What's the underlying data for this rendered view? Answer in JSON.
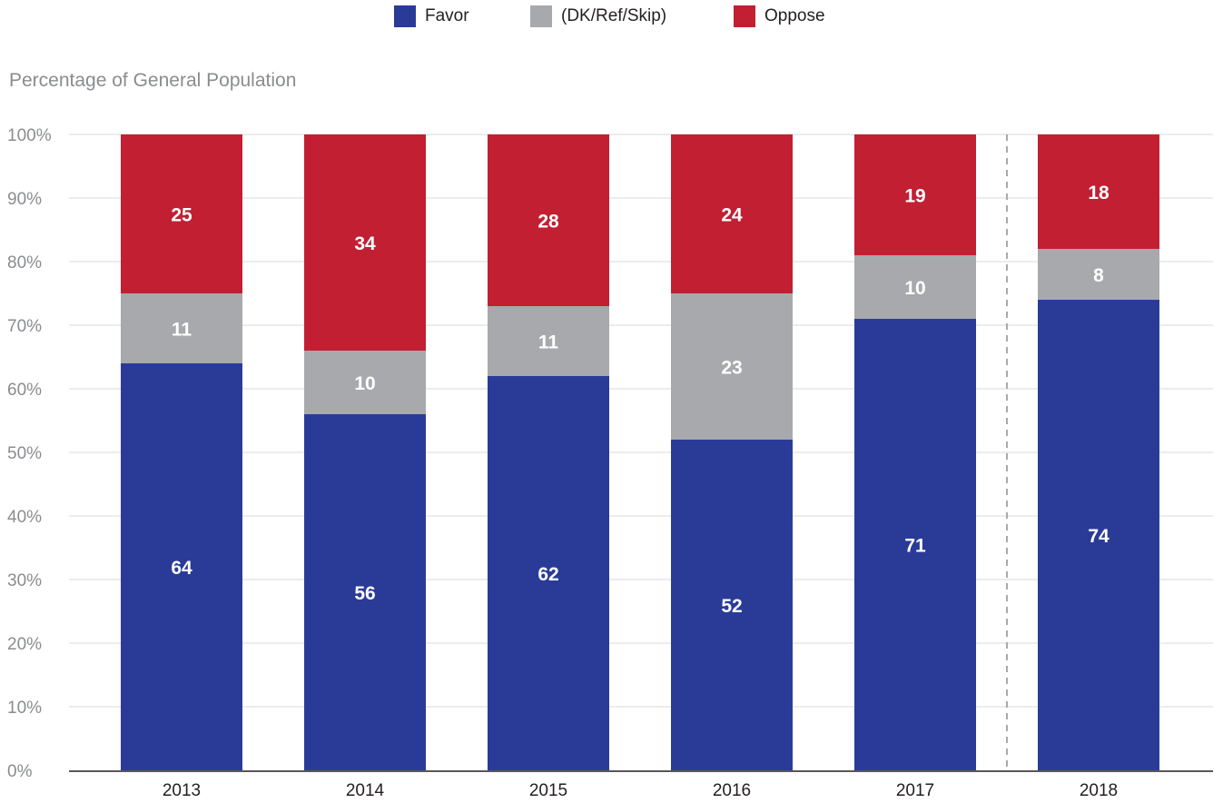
{
  "chart_data": {
    "type": "bar",
    "stacked": true,
    "categories": [
      "2013",
      "2014",
      "2015",
      "2016",
      "2017",
      "2018"
    ],
    "series": [
      {
        "name": "Favor",
        "values": [
          64,
          56,
          62,
          52,
          71,
          74
        ],
        "color": "#2a3b97"
      },
      {
        "name": "(DK/Ref/Skip)",
        "values": [
          11,
          10,
          11,
          23,
          10,
          8
        ],
        "color": "#a7a9ac"
      },
      {
        "name": "Oppose",
        "values": [
          25,
          34,
          28,
          24,
          19,
          18
        ],
        "color": "#c21f32"
      }
    ],
    "title": "",
    "xlabel": "",
    "ylabel": "Percentage of General Population",
    "ylim": [
      0,
      100
    ],
    "yticks": [
      "0%",
      "10%",
      "20%",
      "30%",
      "40%",
      "50%",
      "60%",
      "70%",
      "80%",
      "90%",
      "100%"
    ],
    "grid": true,
    "legend_position": "top-center",
    "divider_before": "2018"
  }
}
